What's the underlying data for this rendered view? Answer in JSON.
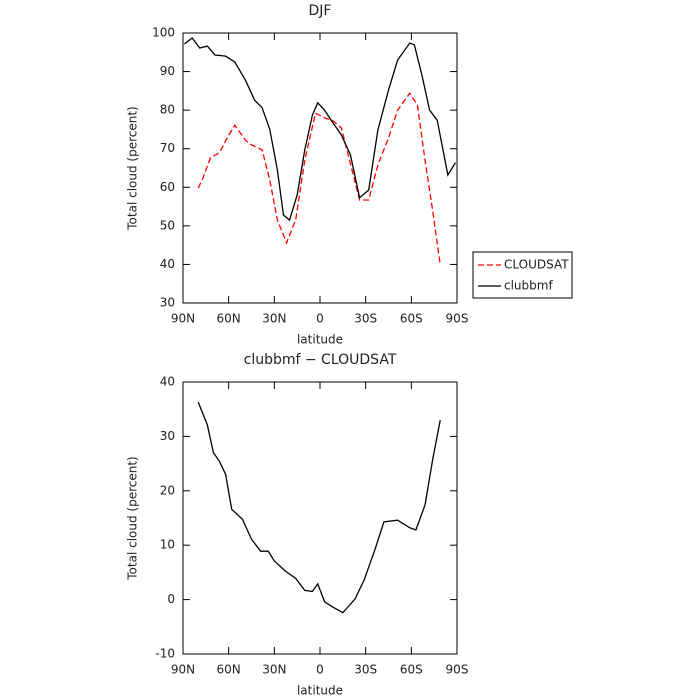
{
  "chart_data": [
    {
      "type": "line",
      "title": "DJF",
      "xlabel": "latitude",
      "ylabel": "Total cloud (percent)",
      "xlim": [
        90,
        -90
      ],
      "xticks": [
        {
          "value": 90,
          "label": "90N"
        },
        {
          "value": 60,
          "label": "60N"
        },
        {
          "value": 30,
          "label": "30N"
        },
        0,
        {
          "value": -30,
          "label": "30S"
        },
        {
          "value": -60,
          "label": "60S"
        },
        {
          "value": -90,
          "label": "90S"
        }
      ],
      "ylim": [
        30,
        100
      ],
      "yticks": [
        30,
        40,
        50,
        60,
        70,
        80,
        90,
        100
      ],
      "legend": "right",
      "series": [
        {
          "name": "CLOUDSAT",
          "color": "#ff0000",
          "style": "dashed",
          "x": [
            80,
            77,
            72,
            66,
            61,
            56,
            49,
            45,
            38,
            33,
            28,
            22,
            16,
            10,
            3,
            -3,
            -8,
            -14,
            -21,
            -26,
            -32,
            -38,
            -45,
            -51,
            -59,
            -64,
            -69,
            -74,
            -79
          ],
          "values": [
            59.8,
            62.3,
            67.6,
            69,
            72.8,
            76.1,
            72.2,
            71,
            69.7,
            61.9,
            51.5,
            45.6,
            51.5,
            67,
            79.2,
            78,
            77.4,
            75.4,
            64.5,
            56.7,
            56.7,
            65.8,
            72.8,
            80,
            84.4,
            81.3,
            67,
            54,
            39.9
          ]
        },
        {
          "name": "clubbmf",
          "color": "#000000",
          "style": "solid",
          "x": [
            89,
            84,
            79,
            74,
            69,
            62,
            56,
            49,
            43,
            38,
            33,
            28,
            24,
            20,
            15,
            10,
            5,
            1.5,
            -3,
            -8,
            -14,
            -20,
            -26,
            -32,
            -38,
            -45,
            -51,
            -59,
            -62,
            -67,
            -72,
            -77,
            -84,
            -89
          ],
          "values": [
            97.2,
            98.7,
            96.1,
            96.6,
            94.3,
            94,
            92.5,
            87.8,
            82.6,
            80.6,
            75,
            64.5,
            52.8,
            51.5,
            58,
            69.7,
            78.7,
            81.9,
            80,
            77,
            73.6,
            68.4,
            57.3,
            59.3,
            74.8,
            85.2,
            93,
            97.4,
            96.9,
            89,
            80,
            77.4,
            63.2,
            66.4
          ]
        }
      ]
    },
    {
      "type": "line",
      "title": "clubbmf − CLOUDSAT",
      "xlabel": "latitude",
      "ylabel": "Total cloud (percent)",
      "xlim": [
        90,
        -90
      ],
      "xticks": [
        {
          "value": 90,
          "label": "90N"
        },
        {
          "value": 60,
          "label": "60N"
        },
        {
          "value": 30,
          "label": "30N"
        },
        0,
        {
          "value": -30,
          "label": "30S"
        },
        {
          "value": -60,
          "label": "60S"
        },
        {
          "value": -90,
          "label": "90S"
        }
      ],
      "ylim": [
        -10,
        40
      ],
      "yticks": [
        -10,
        0,
        10,
        20,
        30,
        40
      ],
      "color": "#000000",
      "x": [
        80,
        74,
        70,
        66,
        62,
        58,
        51,
        45,
        39,
        34,
        30,
        23,
        16,
        10,
        5,
        1.5,
        -3,
        -8,
        -15,
        -23,
        -29,
        -36,
        -42,
        -51,
        -59,
        -63,
        -69,
        -74,
        -79
      ],
      "values": [
        36.3,
        32.1,
        27,
        25.4,
        23,
        16.6,
        14.8,
        11.1,
        8.9,
        8.9,
        7.1,
        5.3,
        3.9,
        1.7,
        1.5,
        2.9,
        -0.4,
        -1.3,
        -2.4,
        0.1,
        3.6,
        9.1,
        14.3,
        14.6,
        13.2,
        12.8,
        17.4,
        25.7,
        33
      ]
    }
  ]
}
